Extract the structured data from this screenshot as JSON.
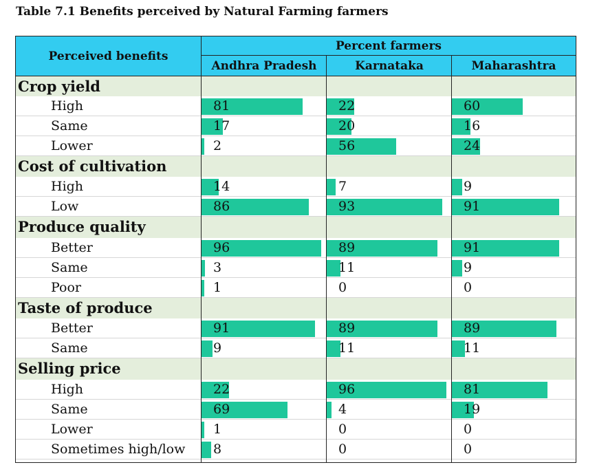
{
  "title": "Table 7.1 Benefits perceived by Natural Farming farmers",
  "header": {
    "perceived_benefits": "Perceived benefits",
    "percent_farmers": "Percent farmers",
    "columns": [
      "Andhra Pradesh",
      "Karnataka",
      "Maharashtra"
    ]
  },
  "colors": {
    "header_bg": "#33ccf0",
    "bar": "#1fc79b",
    "category_bg": "#e4eedc"
  },
  "rows": [
    {
      "type": "category",
      "label": "Crop yield"
    },
    {
      "type": "item",
      "label": "High",
      "values": [
        81,
        22,
        60
      ]
    },
    {
      "type": "item",
      "label": "Same",
      "values": [
        17,
        20,
        16
      ]
    },
    {
      "type": "item",
      "label": "Lower",
      "values": [
        2,
        56,
        24
      ]
    },
    {
      "type": "category",
      "label": "Cost of cultivation"
    },
    {
      "type": "item",
      "label": "High",
      "values": [
        14,
        7,
        9
      ]
    },
    {
      "type": "item",
      "label": "Low",
      "values": [
        86,
        93,
        91
      ]
    },
    {
      "type": "category",
      "label": "Produce quality"
    },
    {
      "type": "item",
      "label": "Better",
      "values": [
        96,
        89,
        91
      ]
    },
    {
      "type": "item",
      "label": "Same",
      "values": [
        3,
        11,
        9
      ]
    },
    {
      "type": "item",
      "label": "Poor",
      "values": [
        1,
        0,
        0
      ]
    },
    {
      "type": "category",
      "label": "Taste of produce"
    },
    {
      "type": "item",
      "label": "Better",
      "values": [
        91,
        89,
        89
      ]
    },
    {
      "type": "item",
      "label": "Same",
      "values": [
        9,
        11,
        11
      ]
    },
    {
      "type": "category",
      "label": "Selling price"
    },
    {
      "type": "item",
      "label": "High",
      "values": [
        22,
        96,
        81
      ]
    },
    {
      "type": "item",
      "label": "Same",
      "values": [
        69,
        4,
        19
      ]
    },
    {
      "type": "item",
      "label": "Lower",
      "values": [
        1,
        0,
        0
      ]
    },
    {
      "type": "item",
      "label": "Sometimes high/low",
      "values": [
        8,
        0,
        0
      ]
    }
  ]
}
